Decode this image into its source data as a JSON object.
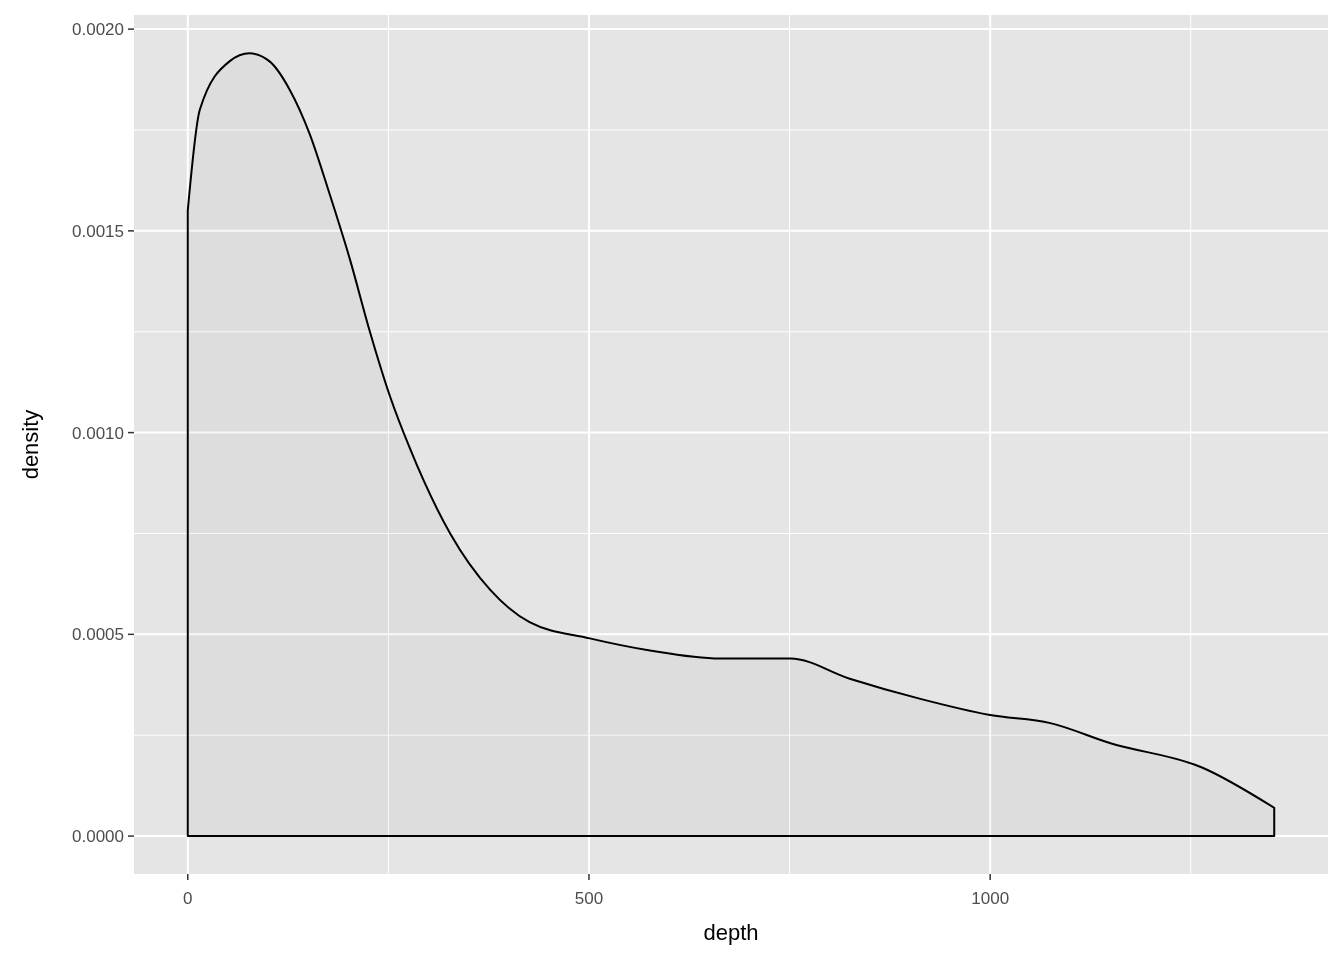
{
  "chart_data": {
    "type": "area",
    "xlabel": "depth",
    "ylabel": "density",
    "xlim": [
      -67,
      1421
    ],
    "ylim": [
      -9.4e-05,
      0.002035
    ],
    "xticks": [
      0,
      {
        "value": 250,
        "label": null
      },
      500,
      {
        "value": 750,
        "label": null
      },
      1000,
      {
        "value": 1250,
        "label": null
      }
    ],
    "yticks": [
      {
        "value": 0,
        "label": "0.0000"
      },
      {
        "value": 0.00025,
        "label": null
      },
      {
        "value": 0.0005,
        "label": "0.0005"
      },
      {
        "value": 0.00075,
        "label": null
      },
      {
        "value": 0.001,
        "label": "0.0010"
      },
      {
        "value": 0.00125,
        "label": null
      },
      {
        "value": 0.0015,
        "label": "0.0015"
      },
      {
        "value": 0.00175,
        "label": null
      },
      {
        "value": 0.002,
        "label": "0.0020"
      }
    ],
    "grid": true,
    "x": [
      0,
      15,
      52,
      77,
      102,
      127,
      152,
      177,
      202,
      227,
      252,
      277,
      327,
      377,
      426,
      501,
      576,
      663,
      751,
      825,
      913,
      1000,
      1075,
      1150,
      1264,
      1354
    ],
    "series": [
      {
        "color": "#000000",
        "values": [
          0.00155,
          0.0018,
          0.00192,
          0.00194,
          0.00192,
          0.00185,
          0.00174,
          0.00159,
          0.00143,
          0.00125,
          0.00109,
          0.00096,
          0.00075,
          0.00061,
          0.00053,
          0.00049,
          0.00046,
          0.00044,
          0.00044,
          0.00039,
          0.00034,
          0.0003,
          0.00028,
          0.00023,
          0.00017,
          7e-05
        ]
      }
    ]
  }
}
